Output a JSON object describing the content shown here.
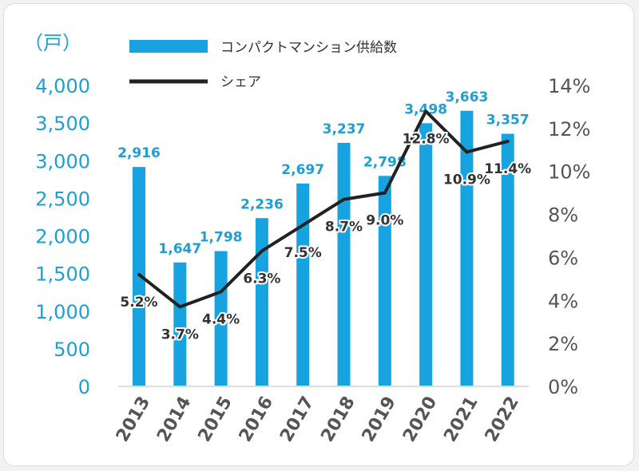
{
  "chart_data": {
    "type": "bar+line",
    "unit_label": "（戸）",
    "categories": [
      "2013",
      "2014",
      "2015",
      "2016",
      "2017",
      "2018",
      "2019",
      "2020",
      "2021",
      "2022"
    ],
    "series": [
      {
        "name": "コンパクトマンション供給数",
        "kind": "bar",
        "axis": "left",
        "color": "#17a3e0",
        "values": [
          2916,
          1647,
          1798,
          2236,
          2697,
          3237,
          2798,
          3498,
          3663,
          3357
        ],
        "labels": [
          "2,916",
          "1,647",
          "1,798",
          "2,236",
          "2,697",
          "3,237",
          "2,798",
          "3,498",
          "3,663",
          "3,357"
        ]
      },
      {
        "name": "シェア",
        "kind": "line",
        "axis": "right",
        "color": "#222222",
        "values": [
          5.2,
          3.7,
          4.4,
          6.3,
          7.5,
          8.7,
          9.0,
          12.8,
          10.9,
          11.4
        ],
        "labels": [
          "5.2%",
          "3.7%",
          "4.4%",
          "6.3%",
          "7.5%",
          "8.7%",
          "9.0%",
          "12.8%",
          "10.9%",
          "11.4%"
        ]
      }
    ],
    "y_left": {
      "range": [
        0,
        4000
      ],
      "ticks": [
        0,
        500,
        1000,
        1500,
        2000,
        2500,
        3000,
        3500,
        4000
      ],
      "tick_labels": [
        "0",
        "500",
        "1,000",
        "1,500",
        "2,000",
        "2,500",
        "3,000",
        "3,500",
        "4,000"
      ]
    },
    "y_right": {
      "range": [
        0,
        14
      ],
      "ticks": [
        0,
        2,
        4,
        6,
        8,
        10,
        12,
        14
      ],
      "tick_labels": [
        "0%",
        "2%",
        "4%",
        "6%",
        "8%",
        "10%",
        "12%",
        "14%"
      ]
    },
    "legend": {
      "placement": "top-left",
      "items": [
        "コンパクトマンション供給数",
        "シェア"
      ]
    }
  }
}
